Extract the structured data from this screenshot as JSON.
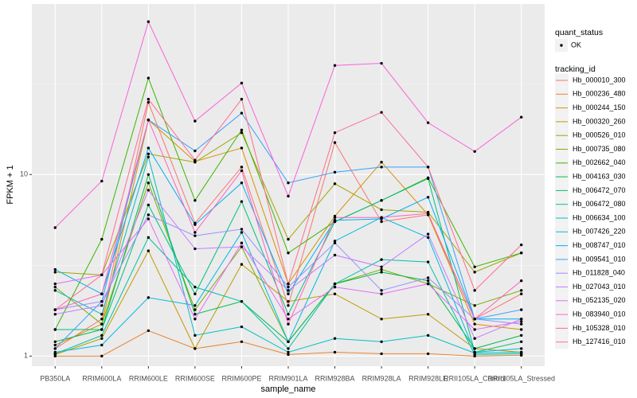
{
  "chart_data": {
    "type": "line",
    "x_label": "sample_name",
    "y_label": "FPKM + 1",
    "categories": [
      "PB350LA",
      "RRIM600LA",
      "RRIM600LE",
      "RRIM600SE",
      "RRIM600PE",
      "RRIM901LA",
      "RRIM928BA",
      "RRIM928LA",
      "RRIM928LE",
      "RRII105LA_Control",
      "RRII105LA_Stressed"
    ],
    "ylim": [
      0.88,
      87
    ],
    "yticks": [
      1,
      10
    ],
    "log_scale": true,
    "grid": true,
    "shape_legend_title": "quant_status",
    "shape_legend_levels": [
      "OK"
    ],
    "legend_title": "tracking_id",
    "legend_position": "right",
    "series": [
      {
        "name": "Hb_000010_300",
        "color": "#F8766D",
        "values": [
          1.1,
          1.6,
          25,
          5.4,
          11,
          1.9,
          15,
          5.5,
          6.0,
          1.6,
          2.2
        ]
      },
      {
        "name": "Hb_000236_480",
        "color": "#EA8331",
        "values": [
          1.0,
          1.0,
          1.38,
          1.1,
          1.2,
          1.02,
          1.05,
          1.03,
          1.03,
          1.0,
          1.01
        ]
      },
      {
        "name": "Hb_000244_150",
        "color": "#D89000",
        "values": [
          1.15,
          1.5,
          20,
          11.8,
          14,
          2.5,
          5.9,
          11.7,
          6.0,
          1.5,
          1.4
        ]
      },
      {
        "name": "Hb_000320_260",
        "color": "#C09B00",
        "values": [
          1.02,
          1.25,
          3.8,
          1.1,
          3.2,
          2.0,
          2.2,
          1.6,
          1.7,
          1.1,
          1.05
        ]
      },
      {
        "name": "Hb_000526_010",
        "color": "#A3A500",
        "values": [
          2.9,
          2.8,
          13,
          11.7,
          17,
          4.4,
          8.9,
          6.4,
          6.2,
          2.9,
          3.7
        ]
      },
      {
        "name": "Hb_000735_080",
        "color": "#7CAE00",
        "values": [
          2.4,
          1.5,
          9.0,
          1.8,
          4.0,
          1.2,
          2.5,
          3.0,
          2.5,
          1.9,
          2.3
        ]
      },
      {
        "name": "Hb_002662_040",
        "color": "#39B600",
        "values": [
          1.4,
          4.4,
          34,
          7.2,
          17.6,
          3.7,
          5.5,
          7.2,
          9.6,
          3.1,
          3.7
        ]
      },
      {
        "name": "Hb_004163_030",
        "color": "#00BB4E",
        "values": [
          1.2,
          1.4,
          10,
          1.7,
          2.0,
          1.2,
          2.5,
          2.9,
          2.6,
          1.1,
          1.3
        ]
      },
      {
        "name": "Hb_006472_070",
        "color": "#00BF7D",
        "values": [
          1.4,
          1.4,
          6.8,
          2.2,
          7.1,
          1.7,
          5.5,
          7.2,
          9.5,
          1.05,
          1.2
        ]
      },
      {
        "name": "Hb_006472_080",
        "color": "#00C1A3",
        "values": [
          1.03,
          1.3,
          4.5,
          2.4,
          2.0,
          1.1,
          2.5,
          3.4,
          3.3,
          1.02,
          1.03
        ]
      },
      {
        "name": "Hb_006634_100",
        "color": "#00BFC4",
        "values": [
          2.3,
          1.7,
          12.5,
          1.3,
          1.45,
          1.05,
          1.25,
          1.2,
          1.3,
          1.04,
          1.05
        ]
      },
      {
        "name": "Hb_007426_220",
        "color": "#00BAE0",
        "values": [
          1.05,
          1.15,
          2.1,
          1.9,
          4.8,
          1.2,
          4.3,
          5.8,
          4.5,
          1.05,
          1.1
        ]
      },
      {
        "name": "Hb_008747_010",
        "color": "#00B0F6",
        "values": [
          3.0,
          2.2,
          14,
          5.3,
          9.0,
          2.2,
          5.6,
          5.7,
          7.5,
          1.6,
          1.6
        ]
      },
      {
        "name": "Hb_009541_010",
        "color": "#35A2FF",
        "values": [
          1.1,
          2.0,
          20,
          13.5,
          21.8,
          9.0,
          10.3,
          11,
          11,
          1.6,
          1.8
        ]
      },
      {
        "name": "Hb_011828_040",
        "color": "#9590FF",
        "values": [
          1.8,
          2.0,
          6.0,
          4.6,
          5.0,
          2.4,
          4.2,
          2.3,
          2.7,
          1.6,
          1.5
        ]
      },
      {
        "name": "Hb_027043_010",
        "color": "#C77CFF",
        "values": [
          1.7,
          1.9,
          8.2,
          3.9,
          4.0,
          2.3,
          3.6,
          3.1,
          4.7,
          1.25,
          1.6
        ]
      },
      {
        "name": "Hb_052135_020",
        "color": "#E76BF3",
        "values": [
          2.5,
          2.8,
          5.7,
          1.6,
          4.2,
          1.6,
          2.4,
          2.2,
          2.5,
          1.4,
          1.55
        ]
      },
      {
        "name": "Hb_083940_010",
        "color": "#FA62DB",
        "values": [
          5.1,
          9.2,
          69.5,
          19.7,
          31.9,
          7.6,
          39.9,
          41,
          19.3,
          13.4,
          20.7
        ]
      },
      {
        "name": "Hb_105328_010",
        "color": "#FF62BC",
        "values": [
          1.8,
          2.2,
          20,
          4.8,
          10.5,
          1.5,
          5.8,
          5.8,
          6.1,
          1.6,
          2.6
        ]
      },
      {
        "name": "Hb_127416_010",
        "color": "#FF6C91",
        "values": [
          1.8,
          2.8,
          26,
          12,
          26,
          2.5,
          17,
          22,
          11,
          2.3,
          4.1
        ]
      }
    ]
  }
}
